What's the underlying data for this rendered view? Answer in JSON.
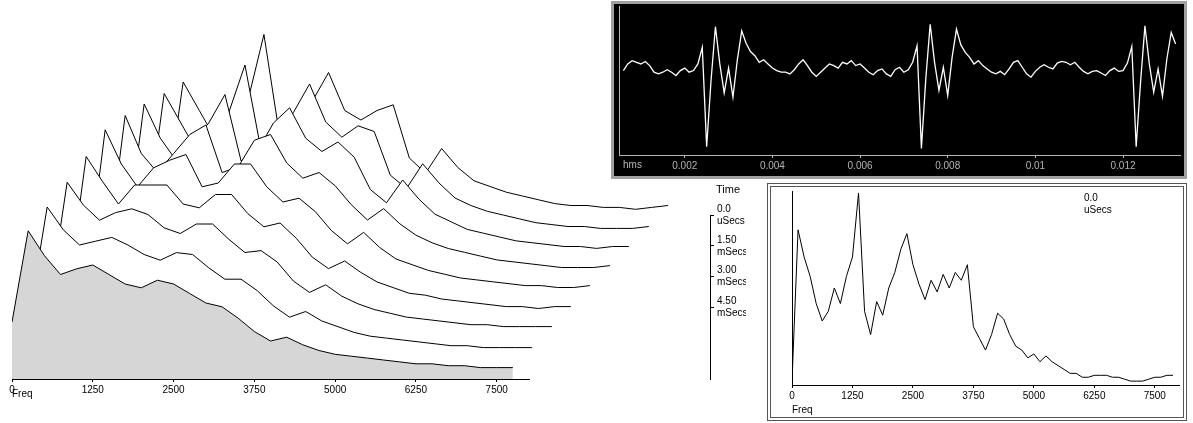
{
  "chart_data": [
    {
      "type": "waterfall",
      "xlabel": "Freq",
      "x": [
        0,
        250,
        500,
        750,
        1000,
        1250,
        1500,
        1750,
        2000,
        2250,
        2500,
        2750,
        3000,
        3250,
        3500,
        3750,
        4000,
        4250,
        4500,
        4750,
        5000,
        5250,
        5500,
        5750,
        6000,
        6250,
        6500,
        6750,
        7000,
        7250,
        7500,
        7750
      ],
      "xlim": [
        0,
        8000
      ],
      "xticks": [
        0,
        1250,
        2500,
        3750,
        5000,
        6250,
        7500
      ],
      "ylim": [
        0,
        100
      ],
      "tick_labels": "x",
      "color": "#000000",
      "time_label": "Time",
      "tlim": [
        0,
        8
      ],
      "tticks": [
        {
          "value": 0,
          "label": "0.0 uSecs"
        },
        {
          "value": 1.5,
          "label": "1.50 mSecs"
        },
        {
          "value": 3,
          "label": "3.00 mSecs"
        },
        {
          "value": 4.5,
          "label": "4.50 mSecs"
        }
      ],
      "times": [
        0,
        1,
        2,
        3,
        4,
        5,
        6,
        7,
        8
      ],
      "slices": [
        [
          10,
          70,
          55,
          40,
          48,
          60,
          95,
          40,
          45,
          60,
          75,
          55,
          50,
          55,
          58,
          30,
          22,
          35,
          25,
          18,
          15,
          12,
          10,
          8,
          6,
          5,
          5,
          4,
          4,
          3,
          4,
          5
        ],
        [
          12,
          75,
          60,
          45,
          55,
          65,
          90,
          45,
          50,
          65,
          80,
          60,
          52,
          58,
          55,
          32,
          25,
          38,
          28,
          20,
          16,
          13,
          11,
          9,
          7,
          6,
          5,
          5,
          4,
          4,
          4,
          5
        ],
        [
          15,
          80,
          62,
          50,
          60,
          70,
          85,
          50,
          55,
          70,
          78,
          62,
          55,
          60,
          52,
          35,
          28,
          40,
          30,
          22,
          18,
          14,
          12,
          10,
          8,
          7,
          6,
          5,
          5,
          4,
          5,
          5
        ],
        [
          18,
          85,
          65,
          55,
          65,
          75,
          80,
          55,
          58,
          72,
          75,
          60,
          52,
          55,
          48,
          38,
          30,
          36,
          28,
          22,
          18,
          15,
          13,
          11,
          9,
          8,
          7,
          6,
          5,
          5,
          5,
          6
        ],
        [
          20,
          88,
          70,
          58,
          68,
          72,
          75,
          58,
          60,
          70,
          70,
          58,
          50,
          52,
          45,
          35,
          28,
          34,
          26,
          20,
          17,
          14,
          12,
          10,
          9,
          8,
          7,
          6,
          6,
          5,
          5,
          6
        ],
        [
          22,
          85,
          72,
          60,
          70,
          70,
          70,
          60,
          58,
          65,
          65,
          55,
          48,
          50,
          42,
          32,
          26,
          30,
          24,
          19,
          16,
          13,
          12,
          10,
          9,
          8,
          7,
          6,
          6,
          5,
          6,
          6
        ],
        [
          25,
          82,
          70,
          62,
          66,
          68,
          65,
          58,
          55,
          60,
          60,
          52,
          45,
          46,
          40,
          30,
          24,
          28,
          22,
          18,
          15,
          13,
          11,
          10,
          9,
          8,
          7,
          7,
          6,
          6,
          6,
          6
        ],
        [
          28,
          80,
          68,
          60,
          62,
          64,
          60,
          55,
          52,
          56,
          55,
          48,
          42,
          42,
          36,
          28,
          22,
          25,
          20,
          17,
          14,
          12,
          11,
          10,
          9,
          8,
          7,
          7,
          6,
          6,
          6,
          6
        ],
        [
          30,
          78,
          65,
          55,
          58,
          60,
          55,
          50,
          48,
          52,
          50,
          45,
          40,
          38,
          32,
          25,
          20,
          22,
          18,
          15,
          13,
          12,
          11,
          10,
          9,
          8,
          8,
          7,
          7,
          6,
          6,
          6
        ]
      ]
    },
    {
      "type": "line",
      "xlabel": "hms",
      "x": [
        0.0006,
        0.0007,
        0.0008,
        0.0009,
        0.001,
        0.0011,
        0.0012,
        0.0013,
        0.0014,
        0.0015,
        0.0016,
        0.0017,
        0.0018,
        0.0019,
        0.002,
        0.0021,
        0.0022,
        0.0023,
        0.0024,
        0.0025,
        0.0026,
        0.0027,
        0.0028,
        0.0029,
        0.003,
        0.0031,
        0.0032,
        0.0033,
        0.0034,
        0.0035,
        0.0036,
        0.0037,
        0.0038,
        0.0039,
        0.004,
        0.0041,
        0.0042,
        0.0043,
        0.0044,
        0.0045,
        0.0046,
        0.0047,
        0.0048,
        0.0049,
        0.005,
        0.0051,
        0.0052,
        0.0053,
        0.0054,
        0.0055,
        0.0056,
        0.0057,
        0.0058,
        0.0059,
        0.006,
        0.0061,
        0.0062,
        0.0063,
        0.0064,
        0.0065,
        0.0066,
        0.0067,
        0.0068,
        0.0069,
        0.007,
        0.0071,
        0.0072,
        0.0073,
        0.0074,
        0.0075,
        0.0076,
        0.0077,
        0.0078,
        0.0079,
        0.008,
        0.0081,
        0.0082,
        0.0083,
        0.0084,
        0.0085,
        0.0086,
        0.0087,
        0.0088,
        0.0089,
        0.009,
        0.0091,
        0.0092,
        0.0093,
        0.0094,
        0.0095,
        0.0096,
        0.0097,
        0.0098,
        0.0099,
        0.01,
        0.0101,
        0.0102,
        0.0103,
        0.0104,
        0.0105,
        0.0106,
        0.0107,
        0.0108,
        0.0109,
        0.011,
        0.0111,
        0.0112,
        0.0113,
        0.0114,
        0.0115,
        0.0116,
        0.0117,
        0.0118,
        0.0119,
        0.012,
        0.0121,
        0.0122,
        0.0123,
        0.0124,
        0.0125,
        0.0126,
        0.0127,
        0.0128,
        0.0129,
        0.013,
        0.0131,
        0.0132
      ],
      "values": [
        0.02,
        0.1,
        0.14,
        0.12,
        0.1,
        0.13,
        0.08,
        0.0,
        -0.02,
        0.0,
        0.03,
        0.0,
        -0.04,
        0.02,
        0.05,
        0.0,
        0.02,
        0.1,
        0.3,
        -0.9,
        -0.1,
        0.55,
        0.1,
        -0.25,
        0.05,
        -0.3,
        0.15,
        0.5,
        0.35,
        0.25,
        0.2,
        0.12,
        0.15,
        0.1,
        0.05,
        0.02,
        0.0,
        0.0,
        -0.02,
        0.03,
        0.1,
        0.15,
        0.08,
        0.0,
        -0.05,
        0.0,
        0.05,
        0.1,
        0.08,
        0.05,
        0.12,
        0.1,
        0.14,
        0.08,
        0.1,
        0.05,
        0.0,
        -0.03,
        0.02,
        0.04,
        -0.02,
        -0.05,
        0.03,
        0.06,
        0.0,
        0.03,
        0.12,
        0.32,
        -0.92,
        -0.08,
        0.58,
        0.12,
        -0.22,
        0.06,
        -0.28,
        0.18,
        0.52,
        0.33,
        0.24,
        0.18,
        0.1,
        0.14,
        0.08,
        0.04,
        0.0,
        -0.02,
        0.01,
        -0.03,
        0.04,
        0.12,
        0.14,
        0.06,
        -0.02,
        -0.06,
        0.01,
        0.06,
        0.09,
        0.06,
        0.04,
        0.11,
        0.13,
        0.12,
        0.09,
        0.12,
        0.06,
        0.01,
        -0.02,
        0.01,
        0.02,
        -0.01,
        -0.04,
        0.02,
        0.05,
        0.01,
        0.02,
        0.11,
        0.31,
        -0.9,
        -0.12,
        0.56,
        0.1,
        -0.24,
        0.04,
        -0.29,
        0.16,
        0.48,
        0.34
      ],
      "xlim": [
        0.0005,
        0.0133
      ],
      "xticks": [
        0.002,
        0.004,
        0.006,
        0.008,
        0.01,
        0.012
      ],
      "ylim": [
        -1,
        0.8
      ],
      "tick_labels": "x",
      "color": "#ffffff"
    },
    {
      "type": "line",
      "xlabel": "Freq",
      "annotation": "0.0 uSecs",
      "x": [
        0,
        125,
        250,
        375,
        500,
        625,
        750,
        875,
        1000,
        1125,
        1250,
        1375,
        1500,
        1625,
        1750,
        1875,
        2000,
        2125,
        2250,
        2375,
        2500,
        2625,
        2750,
        2875,
        3000,
        3125,
        3250,
        3375,
        3500,
        3625,
        3750,
        3875,
        4000,
        4125,
        4250,
        4375,
        4500,
        4625,
        4750,
        4875,
        5000,
        5125,
        5250,
        5375,
        5500,
        5625,
        5750,
        5875,
        6000,
        6125,
        6250,
        6375,
        6500,
        6625,
        6750,
        6875,
        7000,
        7125,
        7250,
        7375,
        7500,
        7625,
        7750,
        7875
      ],
      "values": [
        2,
        80,
        66,
        56,
        42,
        33,
        38,
        50,
        42,
        56,
        66,
        99,
        38,
        26,
        43,
        36,
        50,
        58,
        70,
        78,
        62,
        52,
        44,
        54,
        48,
        57,
        50,
        58,
        54,
        62,
        30,
        24,
        18,
        26,
        37,
        34,
        26,
        20,
        18,
        14,
        16,
        12,
        15,
        12,
        10,
        8,
        6,
        6,
        4,
        4,
        5,
        5,
        5,
        4,
        4,
        3,
        2,
        2,
        2,
        3,
        4,
        4,
        5,
        5
      ],
      "xlim": [
        0,
        8000
      ],
      "xticks": [
        0,
        1250,
        2500,
        3750,
        5000,
        6250,
        7500
      ],
      "ylim": [
        0,
        100
      ],
      "tick_labels": "x",
      "color": "#000000"
    }
  ]
}
